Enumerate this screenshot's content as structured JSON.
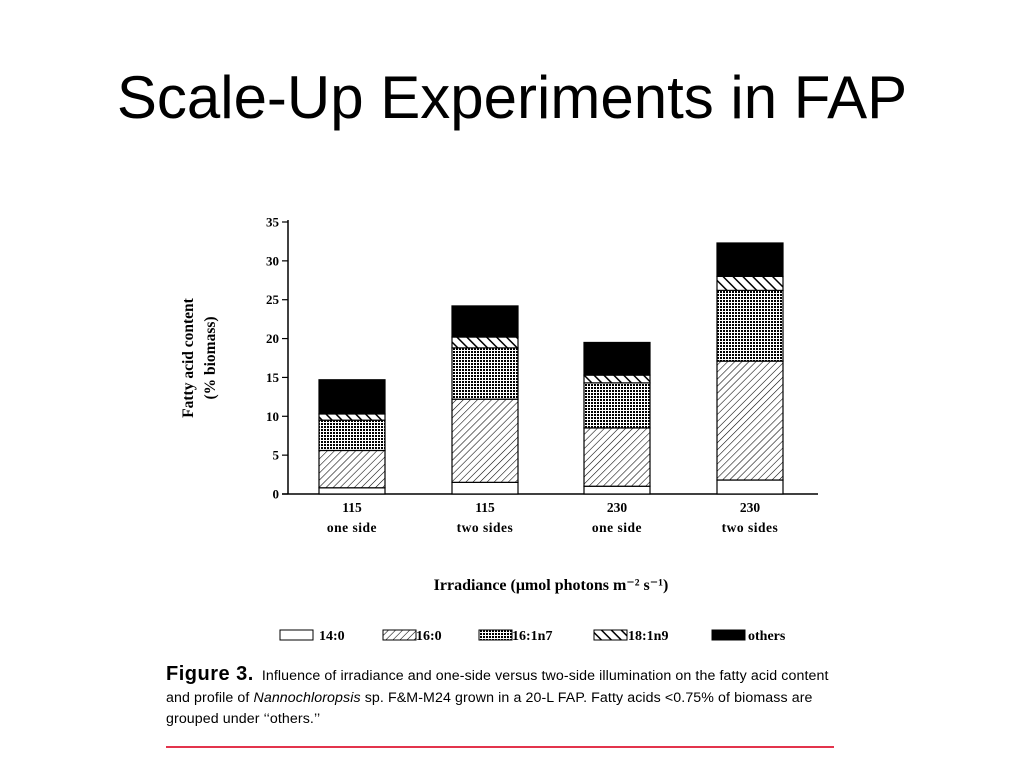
{
  "slide": {
    "title": "Scale-Up Experiments in FAP",
    "rule_color": "#e3344c"
  },
  "chart_data": {
    "type": "bar",
    "stacked": true,
    "categories": [
      [
        "115",
        "one side"
      ],
      [
        "115",
        "two sides"
      ],
      [
        "230",
        "one side"
      ],
      [
        "230",
        "two sides"
      ]
    ],
    "series": [
      {
        "name": "14:0",
        "pattern": "white",
        "values": [
          0.8,
          1.5,
          1.0,
          1.8
        ]
      },
      {
        "name": "16:0",
        "pattern": "diagonal-hatch",
        "values": [
          4.8,
          10.7,
          7.5,
          15.3
        ]
      },
      {
        "name": "16:1n7",
        "pattern": "crosshatch",
        "values": [
          3.9,
          6.6,
          5.8,
          9.1
        ]
      },
      {
        "name": "18:1n9",
        "pattern": "back-diagonal-stripes",
        "values": [
          0.8,
          1.4,
          1.0,
          1.8
        ]
      },
      {
        "name": "others",
        "pattern": "solid-black",
        "values": [
          4.4,
          4.0,
          4.2,
          4.3
        ]
      }
    ],
    "ylabel_line1": "Fatty acid content",
    "ylabel_line2": "(% biomass)",
    "xlabel": "Irradiance (μmol photons m⁻² s⁻¹)",
    "ylim": [
      0,
      35
    ],
    "yticks": [
      0,
      5,
      10,
      15,
      20,
      25,
      30,
      35
    ],
    "grid": false,
    "legend_position": "bottom"
  },
  "caption": {
    "label": "Figure  3.",
    "text_1": "Influence of irradiance and one-side versus two-side illumination on the fatty acid content and profile of ",
    "species": "Nannochloropsis",
    "text_2": " sp. F&M-M24 grown in a 20-L FAP. Fatty acids <0.75% of biomass are grouped under ‘‘others.’’"
  }
}
